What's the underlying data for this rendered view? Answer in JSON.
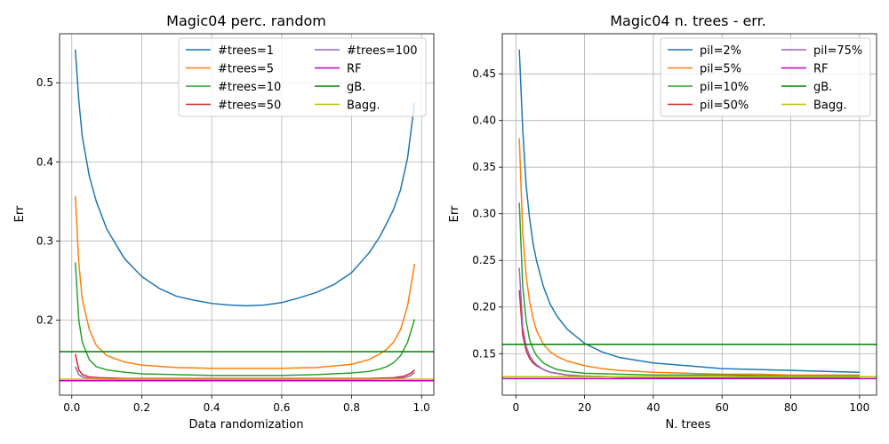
{
  "chart_data": [
    {
      "type": "line",
      "title": "Magic04 perc. random",
      "xlabel": "Data randomization",
      "ylabel": "Err",
      "xlim": [
        -0.035,
        1.035
      ],
      "ylim": [
        0.105,
        0.562
      ],
      "xticks": [
        0.0,
        0.2,
        0.4,
        0.6,
        0.8,
        1.0
      ],
      "xtick_labels": [
        "0.0",
        "0.2",
        "0.4",
        "0.6",
        "0.8",
        "1.0"
      ],
      "yticks": [
        0.2,
        0.3,
        0.4,
        0.5
      ],
      "ytick_labels": [
        "0.2",
        "0.3",
        "0.4",
        "0.5"
      ],
      "grid": true,
      "legend_position": "top-right",
      "legend_columns": 2,
      "series": [
        {
          "name": "#trees=1",
          "color": "#1f77b4",
          "x": [
            0.01,
            0.02,
            0.03,
            0.05,
            0.07,
            0.1,
            0.15,
            0.2,
            0.25,
            0.3,
            0.35,
            0.4,
            0.45,
            0.5,
            0.55,
            0.6,
            0.65,
            0.7,
            0.75,
            0.8,
            0.85,
            0.88,
            0.9,
            0.92,
            0.94,
            0.96,
            0.98
          ],
          "y": [
            0.542,
            0.478,
            0.432,
            0.382,
            0.35,
            0.315,
            0.278,
            0.255,
            0.24,
            0.23,
            0.225,
            0.221,
            0.219,
            0.218,
            0.219,
            0.222,
            0.228,
            0.235,
            0.245,
            0.26,
            0.285,
            0.305,
            0.322,
            0.34,
            0.365,
            0.405,
            0.475
          ]
        },
        {
          "name": "#trees=5",
          "color": "#ff7f0e",
          "x": [
            0.01,
            0.02,
            0.03,
            0.05,
            0.07,
            0.1,
            0.15,
            0.2,
            0.3,
            0.4,
            0.5,
            0.6,
            0.7,
            0.8,
            0.85,
            0.88,
            0.9,
            0.92,
            0.94,
            0.96,
            0.98
          ],
          "y": [
            0.357,
            0.272,
            0.226,
            0.188,
            0.168,
            0.155,
            0.147,
            0.143,
            0.14,
            0.139,
            0.139,
            0.139,
            0.14,
            0.144,
            0.15,
            0.157,
            0.163,
            0.172,
            0.188,
            0.218,
            0.271
          ]
        },
        {
          "name": "#trees=10",
          "color": "#2ca02c",
          "x": [
            0.01,
            0.02,
            0.03,
            0.05,
            0.07,
            0.1,
            0.15,
            0.2,
            0.3,
            0.4,
            0.5,
            0.6,
            0.7,
            0.8,
            0.85,
            0.88,
            0.9,
            0.92,
            0.94,
            0.96,
            0.98
          ],
          "y": [
            0.273,
            0.2,
            0.172,
            0.15,
            0.141,
            0.137,
            0.134,
            0.132,
            0.131,
            0.13,
            0.13,
            0.13,
            0.131,
            0.133,
            0.135,
            0.138,
            0.141,
            0.146,
            0.155,
            0.172,
            0.201
          ]
        },
        {
          "name": "#trees=50",
          "color": "#d62728",
          "x": [
            0.01,
            0.02,
            0.03,
            0.05,
            0.08,
            0.15,
            0.3,
            0.5,
            0.7,
            0.85,
            0.92,
            0.95,
            0.97,
            0.98
          ],
          "y": [
            0.157,
            0.137,
            0.131,
            0.128,
            0.127,
            0.126,
            0.126,
            0.126,
            0.126,
            0.126,
            0.127,
            0.129,
            0.133,
            0.137
          ]
        },
        {
          "name": "#trees=100",
          "color": "#9467bd",
          "x": [
            0.01,
            0.02,
            0.03,
            0.05,
            0.08,
            0.15,
            0.3,
            0.5,
            0.7,
            0.85,
            0.92,
            0.95,
            0.97,
            0.98
          ],
          "y": [
            0.141,
            0.131,
            0.128,
            0.126,
            0.125,
            0.125,
            0.125,
            0.125,
            0.125,
            0.125,
            0.126,
            0.127,
            0.13,
            0.134
          ]
        },
        {
          "name": "RF",
          "color": "#bf00bf",
          "hline": 0.1232
        },
        {
          "name": "gB.",
          "color": "#008000",
          "hline": 0.16
        },
        {
          "name": "Bagg.",
          "color": "#bfbf00",
          "hline": 0.1252
        }
      ]
    },
    {
      "type": "line",
      "title": "Magic04 n. trees - err.",
      "xlabel": "N. trees",
      "ylabel": "Err",
      "xlim": [
        -3.95,
        104.95
      ],
      "ylim": [
        0.1055,
        0.493
      ],
      "xticks": [
        0,
        20,
        40,
        60,
        80,
        100
      ],
      "xtick_labels": [
        "0",
        "20",
        "40",
        "60",
        "80",
        "100"
      ],
      "yticks": [
        0.15,
        0.2,
        0.25,
        0.3,
        0.35,
        0.4,
        0.45
      ],
      "ytick_labels": [
        "0.15",
        "0.20",
        "0.25",
        "0.30",
        "0.35",
        "0.40",
        "0.45"
      ],
      "grid": true,
      "legend_position": "top-right",
      "legend_columns": 2,
      "series": [
        {
          "name": "pil=2%",
          "color": "#1f77b4",
          "x": [
            1,
            2,
            3,
            4,
            5,
            6,
            8,
            10,
            12,
            15,
            20,
            25,
            30,
            40,
            50,
            60,
            70,
            80,
            90,
            100
          ],
          "y": [
            0.476,
            0.39,
            0.33,
            0.295,
            0.268,
            0.25,
            0.222,
            0.203,
            0.19,
            0.176,
            0.161,
            0.152,
            0.146,
            0.14,
            0.137,
            0.134,
            0.133,
            0.132,
            0.131,
            0.13
          ]
        },
        {
          "name": "pil=5%",
          "color": "#ff7f0e",
          "x": [
            1,
            2,
            3,
            4,
            5,
            6,
            8,
            10,
            12,
            15,
            20,
            25,
            30,
            40,
            50,
            60,
            70,
            80,
            90,
            100
          ],
          "y": [
            0.381,
            0.28,
            0.233,
            0.206,
            0.188,
            0.175,
            0.16,
            0.152,
            0.147,
            0.142,
            0.137,
            0.134,
            0.132,
            0.13,
            0.129,
            0.128,
            0.128,
            0.127,
            0.127,
            0.127
          ]
        },
        {
          "name": "pil=10%",
          "color": "#2ca02c",
          "x": [
            1,
            2,
            3,
            4,
            5,
            6,
            8,
            10,
            12,
            15,
            20,
            30,
            40,
            60,
            80,
            100
          ],
          "y": [
            0.312,
            0.222,
            0.185,
            0.165,
            0.155,
            0.148,
            0.14,
            0.136,
            0.133,
            0.131,
            0.129,
            0.128,
            0.127,
            0.127,
            0.126,
            0.126
          ]
        },
        {
          "name": "pil=50%",
          "color": "#d62728",
          "x": [
            1,
            2,
            3,
            4,
            5,
            6,
            8,
            10,
            15,
            20,
            30,
            50,
            70,
            100
          ],
          "y": [
            0.218,
            0.17,
            0.153,
            0.145,
            0.14,
            0.137,
            0.133,
            0.13,
            0.127,
            0.126,
            0.125,
            0.124,
            0.124,
            0.124
          ]
        },
        {
          "name": "pil=75%",
          "color": "#9467bd",
          "x": [
            1,
            2,
            3,
            4,
            5,
            6,
            8,
            10,
            15,
            20,
            30,
            50,
            70,
            100
          ],
          "y": [
            0.242,
            0.178,
            0.158,
            0.148,
            0.142,
            0.138,
            0.133,
            0.13,
            0.127,
            0.126,
            0.125,
            0.124,
            0.124,
            0.124
          ]
        },
        {
          "name": "RF",
          "color": "#bf00bf",
          "hline": 0.1232
        },
        {
          "name": "gB.",
          "color": "#008000",
          "hline": 0.16
        },
        {
          "name": "Bagg.",
          "color": "#bfbf00",
          "hline": 0.1252
        }
      ]
    }
  ]
}
